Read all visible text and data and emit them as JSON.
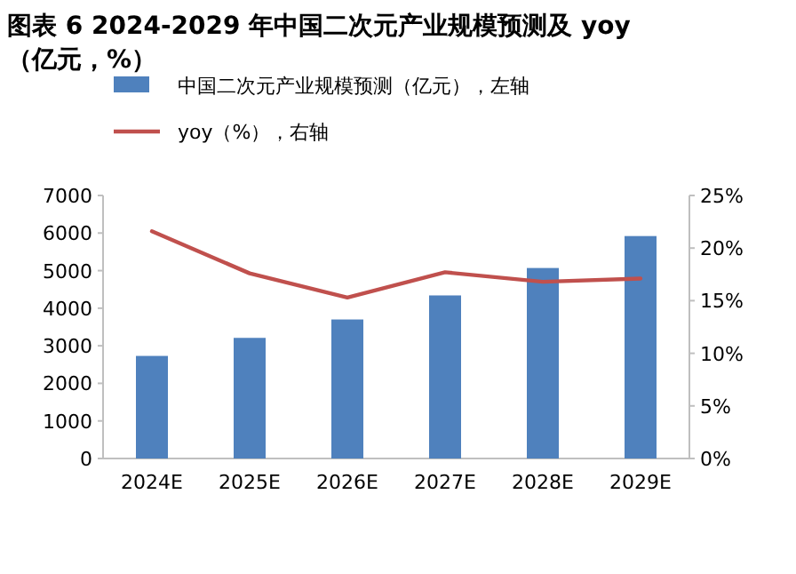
{
  "chart_data": {
    "type": "bar",
    "title": "图表 6 2024-2029 年中国二次元产业规模预测及 yoy（亿元，%）",
    "categories": [
      "2024E",
      "2025E",
      "2026E",
      "2027E",
      "2028E",
      "2029E"
    ],
    "series": [
      {
        "name": "中国二次元产业规模预测（亿元），左轴",
        "color": "#4f81bd",
        "values": [
          2730,
          3210,
          3700,
          4340,
          5070,
          5920
        ]
      },
      {
        "name": "yoy（%），右轴",
        "type": "line",
        "axis": "y2",
        "color": "#c0504d",
        "values": [
          21.6,
          17.6,
          15.3,
          17.7,
          16.8,
          17.1
        ]
      }
    ],
    "ylim": [
      0,
      7000
    ],
    "yticks": [
      0,
      1000,
      2000,
      3000,
      4000,
      5000,
      6000,
      7000
    ],
    "y2lim": [
      0,
      25
    ],
    "y2ticks": [
      {
        "value": 0,
        "label": "0%"
      },
      {
        "value": 5,
        "label": "5%"
      },
      {
        "value": 10,
        "label": "10%"
      },
      {
        "value": 15,
        "label": "15%"
      },
      {
        "value": 20,
        "label": "20%"
      },
      {
        "value": 25,
        "label": "25%"
      }
    ],
    "legend": "top",
    "grid": false,
    "marker": "none"
  }
}
